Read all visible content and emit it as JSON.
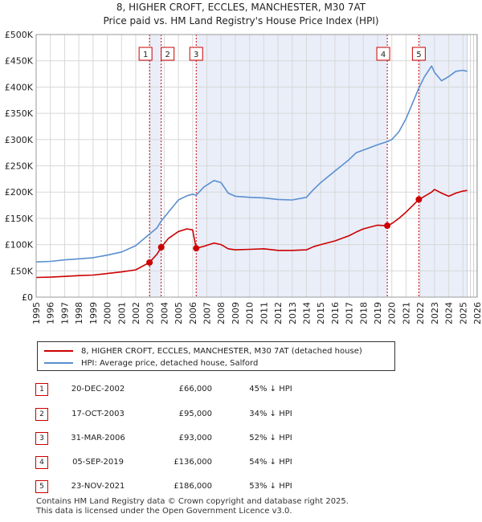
{
  "page": {
    "title_line1": "8, HIGHER CROFT, ECCLES, MANCHESTER, M30 7AT",
    "title_line2": "Price paid vs. HM Land Registry's House Price Index (HPI)"
  },
  "colors": {
    "property": "#cc0000",
    "hpi": "#5b8fd0",
    "shade": "#e9eef9",
    "grid": "#d8d8d8",
    "vline": "#cc0000"
  },
  "chart_data": {
    "type": "line",
    "ylabel": "",
    "xlabel": "",
    "xlim": [
      1995,
      2026
    ],
    "ylim": [
      0,
      500000
    ],
    "y_ticks": [
      0,
      50000,
      100000,
      150000,
      200000,
      250000,
      300000,
      350000,
      400000,
      450000,
      500000
    ],
    "y_tick_labels": [
      "£0",
      "£50K",
      "£100K",
      "£150K",
      "£200K",
      "£250K",
      "£300K",
      "£350K",
      "£400K",
      "£450K",
      "£500K"
    ],
    "x_ticks": [
      1995,
      1996,
      1997,
      1998,
      1999,
      2000,
      2001,
      2002,
      2003,
      2004,
      2005,
      2006,
      2007,
      2008,
      2009,
      2010,
      2011,
      2012,
      2013,
      2014,
      2015,
      2016,
      2017,
      2018,
      2019,
      2020,
      2021,
      2022,
      2023,
      2024,
      2025,
      2026
    ],
    "x_tick_labels": [
      "1995",
      "1996",
      "1997",
      "1998",
      "1999",
      "2000",
      "2001",
      "2002",
      "2003",
      "2004",
      "2005",
      "2006",
      "2007",
      "2008",
      "2009",
      "2010",
      "2011",
      "2012",
      "2013",
      "2014",
      "2015",
      "2016",
      "2017",
      "2018",
      "2019",
      "2020",
      "2021",
      "2022",
      "2023",
      "2024",
      "2025",
      "2026"
    ],
    "shaded_ranges": [
      [
        2002.97,
        2003.79
      ],
      [
        2006.25,
        2019.68
      ],
      [
        2021.9,
        2025.3
      ]
    ],
    "series": [
      {
        "name": "8, HIGHER CROFT, ECCLES, MANCHESTER, M30 7AT (detached house)",
        "color": "#cc0000",
        "x": [
          1995,
          1996,
          1997,
          1998,
          1999,
          2000,
          2001,
          2002,
          2002.97,
          2003.5,
          2003.79,
          2004.3,
          2005,
          2005.6,
          2006,
          2006.25,
          2006.8,
          2007.5,
          2008,
          2008.5,
          2009,
          2010,
          2011,
          2012,
          2013,
          2014,
          2014.5,
          2015,
          2016,
          2017,
          2017.5,
          2018,
          2019,
          2019.68,
          2020,
          2020.5,
          2021,
          2021.9,
          2022.3,
          2022.8,
          2023,
          2023.5,
          2024,
          2024.5,
          2025,
          2025.3
        ],
        "values": [
          37500,
          38000,
          39500,
          41000,
          42000,
          45000,
          48000,
          52000,
          66000,
          82000,
          95000,
          112000,
          125000,
          130000,
          128000,
          93000,
          97000,
          103000,
          100000,
          92000,
          90000,
          91000,
          92000,
          89000,
          89000,
          90000,
          96000,
          100000,
          107000,
          117000,
          124000,
          130000,
          137000,
          136000,
          140000,
          150000,
          162000,
          186000,
          192000,
          200000,
          205000,
          198000,
          192000,
          198000,
          202000,
          203000
        ]
      },
      {
        "name": "HPI: Average price, detached house, Salford",
        "color": "#5b8fd0",
        "x": [
          1995,
          1996,
          1997,
          1998,
          1999,
          2000,
          2001,
          2002,
          2002.97,
          2003.5,
          2003.79,
          2004.3,
          2005,
          2005.6,
          2006,
          2006.25,
          2006.8,
          2007.5,
          2008,
          2008.5,
          2009,
          2010,
          2011,
          2012,
          2013,
          2014,
          2014.5,
          2015,
          2016,
          2017,
          2017.5,
          2018,
          2019,
          2019.68,
          2020,
          2020.5,
          2021,
          2021.9,
          2022.3,
          2022.8,
          2023,
          2023.5,
          2024,
          2024.5,
          2025,
          2025.3
        ],
        "values": [
          67000,
          68000,
          71000,
          73000,
          75000,
          80000,
          86000,
          98000,
          120000,
          132000,
          145000,
          162000,
          185000,
          193000,
          196000,
          194000,
          210000,
          222000,
          218000,
          198000,
          192000,
          190000,
          189000,
          186000,
          185000,
          190000,
          205000,
          218000,
          240000,
          262000,
          275000,
          280000,
          290000,
          296000,
          300000,
          315000,
          340000,
          398000,
          420000,
          440000,
          428000,
          412000,
          420000,
          430000,
          432000,
          430000
        ]
      }
    ],
    "transactions": [
      {
        "n": "1",
        "x": 2002.97,
        "value": 66000
      },
      {
        "n": "2",
        "x": 2003.79,
        "value": 95000
      },
      {
        "n": "3",
        "x": 2006.25,
        "value": 93000
      },
      {
        "n": "4",
        "x": 2019.68,
        "value": 136000
      },
      {
        "n": "5",
        "x": 2021.9,
        "value": 186000
      }
    ]
  },
  "legend": {
    "items": [
      {
        "label": "8, HIGHER CROFT, ECCLES, MANCHESTER, M30 7AT (detached house)"
      },
      {
        "label": "HPI: Average price, detached house, Salford"
      }
    ]
  },
  "table": {
    "rows": [
      {
        "n": "1",
        "date": "20-DEC-2002",
        "price": "£66,000",
        "rel": "45% ↓ HPI"
      },
      {
        "n": "2",
        "date": "17-OCT-2003",
        "price": "£95,000",
        "rel": "34% ↓ HPI"
      },
      {
        "n": "3",
        "date": "31-MAR-2006",
        "price": "£93,000",
        "rel": "52% ↓ HPI"
      },
      {
        "n": "4",
        "date": "05-SEP-2019",
        "price": "£136,000",
        "rel": "54% ↓ HPI"
      },
      {
        "n": "5",
        "date": "23-NOV-2021",
        "price": "£186,000",
        "rel": "53% ↓ HPI"
      }
    ]
  },
  "footer": {
    "line1": "Contains HM Land Registry data © Crown copyright and database right 2025.",
    "line2": "This data is licensed under the Open Government Licence v3.0."
  }
}
